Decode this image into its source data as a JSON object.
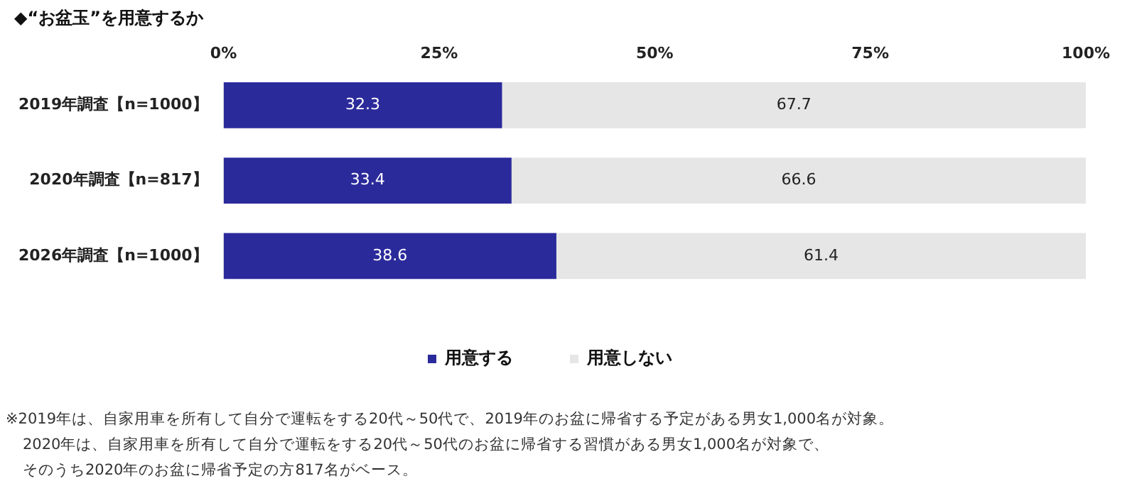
{
  "chart_data": {
    "type": "bar",
    "orientation": "horizontal",
    "stacked": true,
    "title": "◆“お盆玉”を用意するか",
    "categories": [
      "2019年調査【n=1000】",
      "2020年調査【n=817】",
      "2026年調査【n=1000】"
    ],
    "series": [
      {
        "name": "用意する",
        "color": "#2b2a9b",
        "values": [
          32.3,
          33.4,
          38.6
        ]
      },
      {
        "name": "用意しない",
        "color": "#e6e6e6",
        "values": [
          67.7,
          66.6,
          61.4
        ]
      }
    ],
    "xlim": [
      0,
      100
    ],
    "xticks": [
      {
        "value": 0,
        "label": "0%"
      },
      {
        "value": 25,
        "label": "25%"
      },
      {
        "value": 50,
        "label": "50%"
      },
      {
        "value": 75,
        "label": "75%"
      },
      {
        "value": 100,
        "label": "100%"
      }
    ],
    "data_labels": true,
    "legend": "bottom",
    "grid": false,
    "annotations": [
      "※2019年は、自家用車を所有して自分で運転をする20代～50代で、2019年のお盆に帰省する予定がある男女1,000名が対象。",
      "2020年は、自家用車を所有して自分で運転をする20代～50代のお盆に帰省する習慣がある男女1,000名が対象で、",
      "そのうち2020年のお盆に帰省予定の方817名がベース。"
    ]
  }
}
